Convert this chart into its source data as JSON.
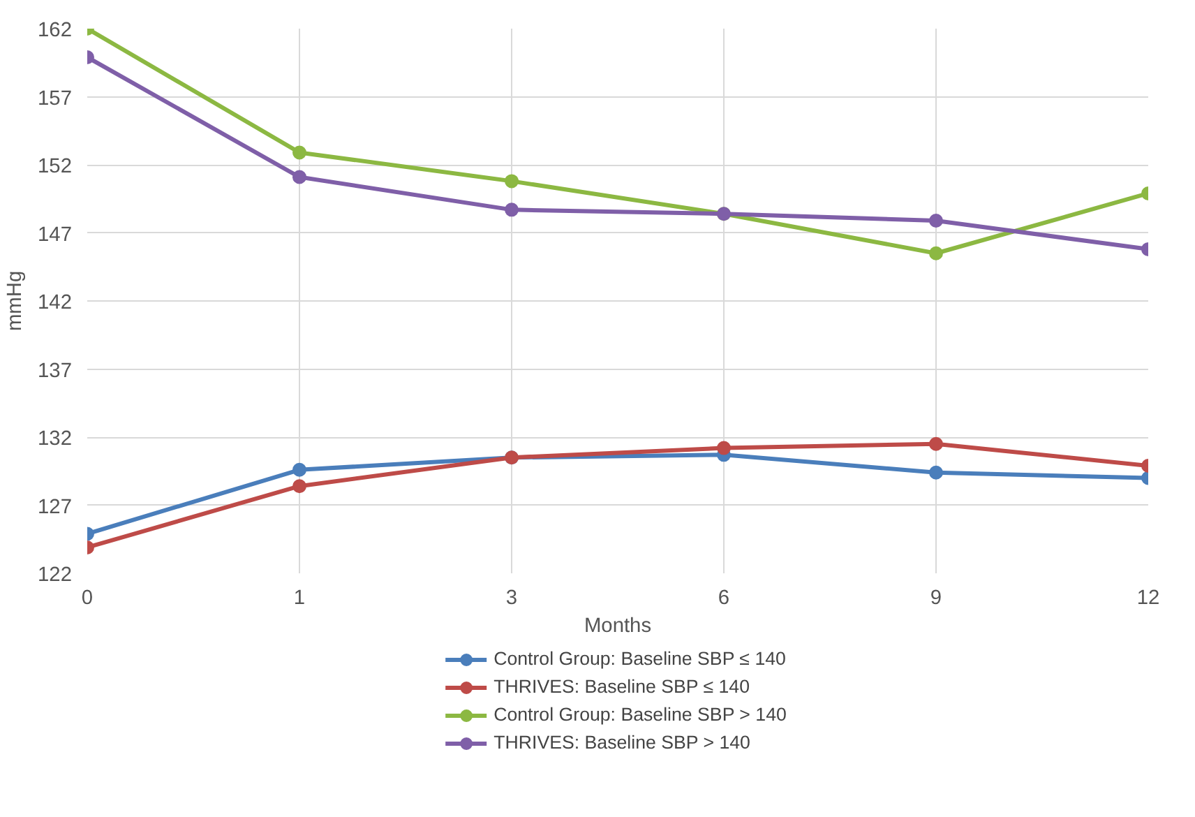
{
  "chart_data": {
    "type": "line",
    "xlabel": "Months",
    "ylabel": "mmHg",
    "categories": [
      "0",
      "1",
      "3",
      "6",
      "9",
      "12"
    ],
    "series": [
      {
        "name": "Control Group: Baseline SBP ≤ 140",
        "color": "#4a7ebb",
        "values": [
          124.9,
          129.6,
          130.5,
          130.7,
          129.4,
          129.0
        ]
      },
      {
        "name": "THRIVES: Baseline SBP ≤ 140",
        "color": "#be4b48",
        "values": [
          123.9,
          128.4,
          130.5,
          131.2,
          131.5,
          129.9
        ]
      },
      {
        "name": "Control Group: Baseline SBP > 140",
        "color": "#8cb842",
        "values": [
          162.0,
          152.9,
          150.8,
          148.4,
          145.5,
          149.9
        ]
      },
      {
        "name": "THRIVES: Baseline SBP > 140",
        "color": "#7f5fa8",
        "values": [
          159.9,
          151.1,
          148.7,
          148.4,
          147.9,
          145.8
        ]
      }
    ],
    "ylim": [
      122,
      162
    ],
    "yticks": [
      122,
      127,
      132,
      137,
      142,
      147,
      152,
      157,
      162
    ],
    "grid": true,
    "legend": "bottom",
    "marker": "circle",
    "line_style": "solid"
  }
}
